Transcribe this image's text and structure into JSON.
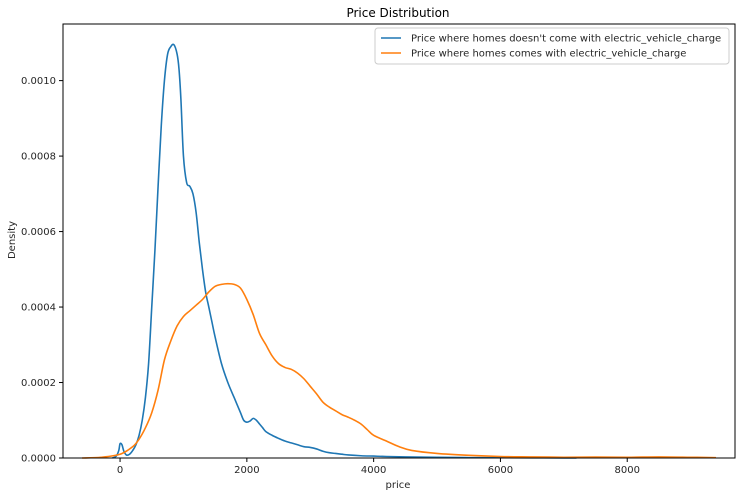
{
  "chart_data": {
    "type": "line",
    "title": "Price Distribution",
    "xlabel": "price",
    "ylabel": "Density",
    "xlim": [
      -900,
      9700
    ],
    "ylim": [
      0,
      0.00115
    ],
    "xticks": [
      0,
      2000,
      4000,
      6000,
      8000
    ],
    "xtick_labels": [
      "0",
      "2000",
      "4000",
      "6000",
      "8000"
    ],
    "yticks": [
      0,
      0.0002,
      0.0004,
      0.0006,
      0.0008,
      0.001
    ],
    "ytick_labels": [
      "0.0000",
      "0.0002",
      "0.0004",
      "0.0006",
      "0.0008",
      "0.0010"
    ],
    "grid": false,
    "legend_position": "top-right",
    "series": [
      {
        "name": "Price where homes doesn't come  with electric_vehicle_charge",
        "color": "#1f77b4",
        "x": [
          -120,
          -60,
          -20,
          0,
          30,
          60,
          100,
          150,
          200,
          250,
          300,
          350,
          400,
          450,
          500,
          550,
          600,
          650,
          700,
          750,
          800,
          850,
          900,
          930,
          960,
          1000,
          1050,
          1100,
          1150,
          1200,
          1250,
          1300,
          1350,
          1400,
          1450,
          1500,
          1600,
          1700,
          1800,
          1850,
          1900,
          1950,
          2000,
          2050,
          2100,
          2150,
          2200,
          2250,
          2300,
          2400,
          2500,
          2600,
          2700,
          2800,
          2900,
          3000,
          3100,
          3200,
          3300,
          3400,
          3500,
          3600,
          3800,
          4000,
          4200,
          4500,
          5000,
          5500,
          6000,
          6500,
          7000,
          7200
        ],
        "y": [
          0,
          5e-06,
          2e-05,
          3.8e-05,
          3.5e-05,
          1.8e-05,
          8e-06,
          1e-05,
          2e-05,
          3.5e-05,
          6e-05,
          0.0001,
          0.00016,
          0.00025,
          0.0004,
          0.00055,
          0.00072,
          0.00088,
          0.001,
          0.00107,
          0.00109,
          0.001095,
          0.00107,
          0.00103,
          0.00095,
          0.0008,
          0.00073,
          0.00072,
          0.0007,
          0.00065,
          0.00057,
          0.0005,
          0.00044,
          0.0004,
          0.00036,
          0.00032,
          0.00025,
          0.0002,
          0.00016,
          0.00014,
          0.00012,
          0.0001,
          9.5e-05,
          9.8e-05,
          0.000105,
          0.0001,
          9e-05,
          8e-05,
          7e-05,
          6e-05,
          5.2e-05,
          4.5e-05,
          4e-05,
          3.5e-05,
          3e-05,
          2.8e-05,
          2.4e-05,
          1.8e-05,
          1.4e-05,
          1.2e-05,
          1e-05,
          8e-06,
          6e-06,
          5e-06,
          4e-06,
          3e-06,
          2e-06,
          1e-06,
          1e-06,
          5e-07,
          3e-07,
          0
        ]
      },
      {
        "name": "Price where homes comes with electric_vehicle_charge",
        "color": "#ff7f0e",
        "x": [
          -600,
          -300,
          0,
          200,
          300,
          400,
          500,
          600,
          700,
          800,
          900,
          1000,
          1100,
          1200,
          1300,
          1400,
          1500,
          1600,
          1700,
          1800,
          1900,
          2000,
          2100,
          2200,
          2300,
          2400,
          2500,
          2600,
          2700,
          2800,
          2900,
          3000,
          3100,
          3200,
          3300,
          3400,
          3500,
          3600,
          3700,
          3800,
          3900,
          4000,
          4200,
          4400,
          4600,
          5000,
          5500,
          6000,
          6500,
          7000,
          7500,
          8000,
          8500,
          9000,
          9400
        ],
        "y": [
          0,
          2e-06,
          1e-05,
          3e-05,
          5e-05,
          8e-05,
          0.00012,
          0.00018,
          0.00026,
          0.00031,
          0.00035,
          0.000375,
          0.00039,
          0.000405,
          0.00042,
          0.00044,
          0.000455,
          0.00046,
          0.000462,
          0.00046,
          0.00045,
          0.00042,
          0.00038,
          0.00033,
          0.0003,
          0.00027,
          0.00025,
          0.00024,
          0.000235,
          0.000225,
          0.00021,
          0.00019,
          0.00017,
          0.000148,
          0.000135,
          0.000125,
          0.000115,
          0.000108,
          0.0001,
          9e-05,
          7.5e-05,
          6e-05,
          4.5e-05,
          3e-05,
          2e-05,
          1.2e-05,
          7e-06,
          4e-06,
          3e-06,
          2e-06,
          2.5e-06,
          2e-06,
          3e-06,
          2e-06,
          1e-06
        ]
      }
    ]
  }
}
